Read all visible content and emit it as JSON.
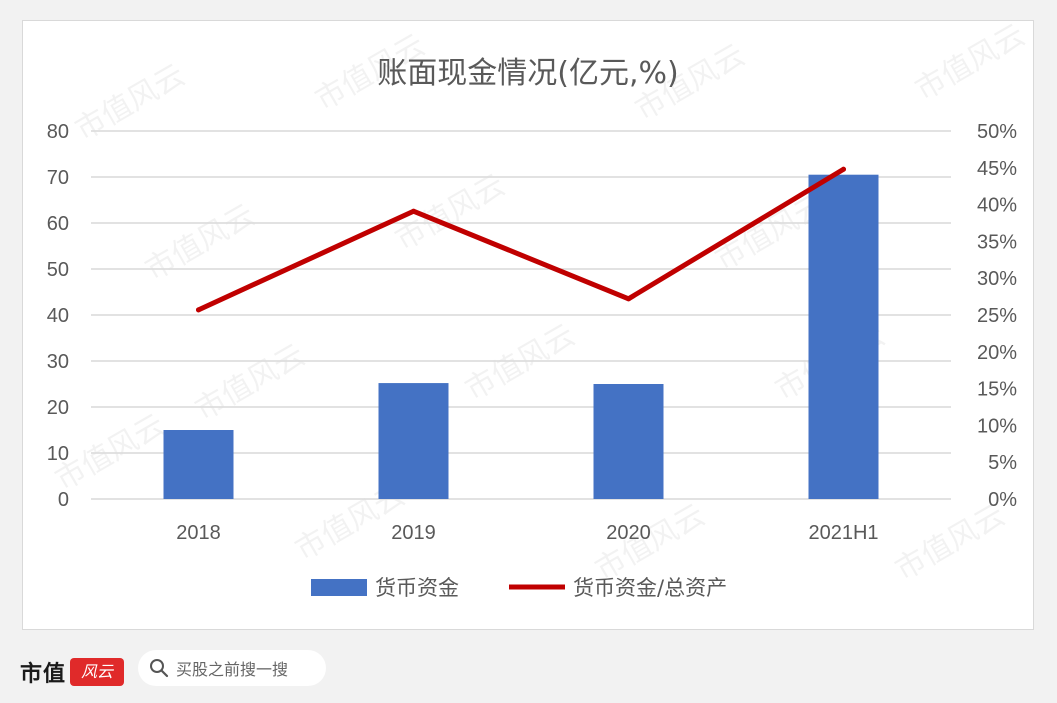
{
  "chart_data": {
    "type": "bar+line",
    "title": "账面现金情况(亿元,%)",
    "categories": [
      "2018",
      "2019",
      "2020",
      "2021H1"
    ],
    "series": [
      {
        "name": "货币资金",
        "type": "bar",
        "axis": "left",
        "color": "#4472c4",
        "values": [
          15,
          25.2,
          25,
          70.5
        ]
      },
      {
        "name": "货币资金/总资产",
        "type": "line",
        "axis": "right",
        "color": "#c00000",
        "values": [
          25.7,
          39.1,
          27.2,
          44.8
        ]
      }
    ],
    "y_left": {
      "min": 0,
      "max": 80,
      "ticks": [
        "0",
        "10",
        "20",
        "30",
        "40",
        "50",
        "60",
        "70",
        "80"
      ]
    },
    "y_right": {
      "min": 0,
      "max": 50,
      "ticks": [
        "0%",
        "5%",
        "10%",
        "15%",
        "20%",
        "25%",
        "30%",
        "35%",
        "40%",
        "45%",
        "50%"
      ]
    },
    "grid": true,
    "legend_position": "bottom",
    "watermark": "市值风云"
  },
  "footer": {
    "brand": "市值",
    "logo_text": "风云",
    "search_placeholder": "买股之前搜一搜",
    "search_icon": "search-icon"
  }
}
